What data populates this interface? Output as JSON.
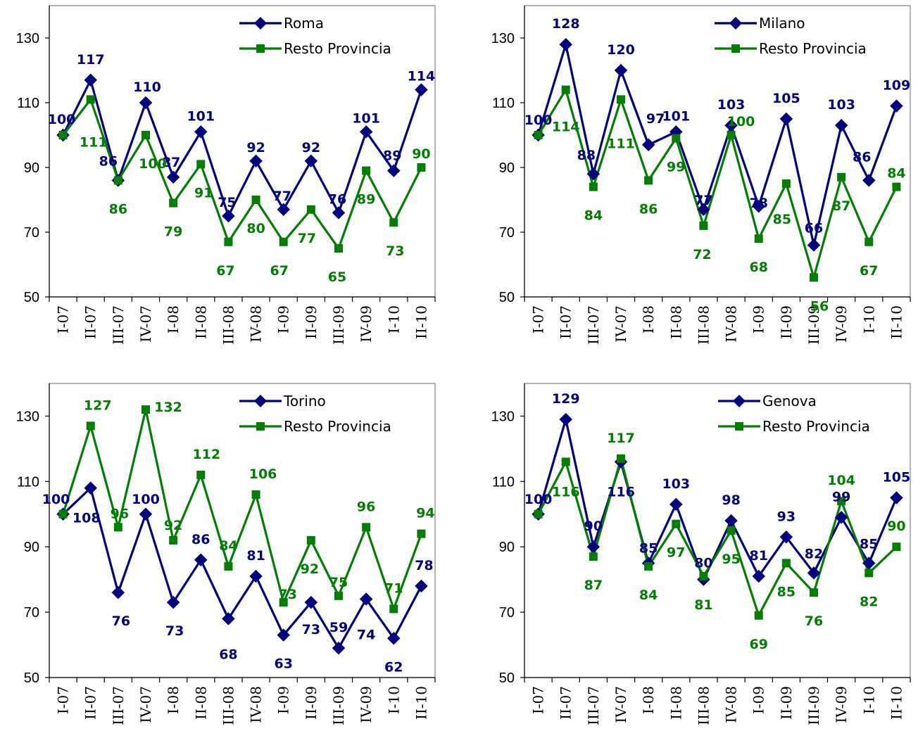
{
  "colors": {
    "city": "#000080",
    "resto": "#008000"
  },
  "chart_data": [
    {
      "type": "line",
      "categories": [
        "I-07",
        "II-07",
        "III-07",
        "IV-07",
        "I-08",
        "II-08",
        "III-08",
        "IV-08",
        "I-09",
        "II-09",
        "III-09",
        "IV-09",
        "I-10",
        "II-10"
      ],
      "ylim": [
        50,
        140
      ],
      "yticks": [
        50,
        70,
        90,
        110,
        130
      ],
      "series": [
        {
          "name": "Roma",
          "values": [
            100,
            117,
            86,
            110,
            87,
            101,
            75,
            92,
            77,
            92,
            76,
            101,
            89,
            114
          ],
          "labels": [
            "100",
            "117",
            "86",
            "110",
            "87",
            "101",
            "75",
            "92",
            "77",
            "92",
            "76",
            "101",
            "89",
            "114"
          ]
        },
        {
          "name": "Resto Provincia",
          "values": [
            100,
            111,
            86,
            100,
            79,
            91,
            67,
            80,
            67,
            77,
            65,
            89,
            73,
            90
          ],
          "labels": [
            "",
            "111",
            "86",
            "100",
            "79",
            "91",
            "67",
            "80",
            "67",
            "77",
            "65",
            "89",
            "73",
            "90"
          ]
        }
      ]
    },
    {
      "type": "line",
      "categories": [
        "I-07",
        "II-07",
        "III-07",
        "IV-07",
        "I-08",
        "II-08",
        "III-08",
        "IV-08",
        "I-09",
        "II-09",
        "III-09",
        "IV-09",
        "I-10",
        "II-10"
      ],
      "ylim": [
        50,
        140
      ],
      "yticks": [
        50,
        70,
        90,
        110,
        130
      ],
      "series": [
        {
          "name": "Milano",
          "values": [
            100,
            128,
            88,
            120,
            97,
            101,
            77,
            103,
            78,
            105,
            66,
            103,
            86,
            109
          ],
          "labels": [
            "100",
            "128",
            "88",
            "120",
            "97",
            "101",
            "77",
            "103",
            "78",
            "105",
            "66",
            "103",
            "86",
            "109"
          ]
        },
        {
          "name": "Resto Provincia",
          "values": [
            100,
            114,
            84,
            111,
            86,
            99,
            72,
            100,
            68,
            85,
            56,
            87,
            67,
            84
          ],
          "labels": [
            "",
            "114",
            "84",
            "111",
            "86",
            "99",
            "72",
            "100",
            "68",
            "85",
            "56",
            "87",
            "67",
            "84"
          ]
        }
      ]
    },
    {
      "type": "line",
      "categories": [
        "I-07",
        "II-07",
        "III-07",
        "IV-07",
        "I-08",
        "II-08",
        "III-08",
        "IV-08",
        "I-09",
        "II-09",
        "III-09",
        "IV-09",
        "I-10",
        "II-10"
      ],
      "ylim": [
        50,
        140
      ],
      "yticks": [
        50,
        70,
        90,
        110,
        130
      ],
      "series": [
        {
          "name": "Torino",
          "values": [
            100,
            108,
            76,
            100,
            73,
            86,
            68,
            81,
            63,
            73,
            59,
            74,
            62,
            78
          ],
          "labels": [
            "100",
            "108",
            "76",
            "100",
            "73",
            "86",
            "68",
            "81",
            "63",
            "73",
            "59",
            "74",
            "62",
            "78"
          ]
        },
        {
          "name": "Resto Provincia",
          "values": [
            100,
            127,
            96,
            132,
            92,
            112,
            84,
            106,
            73,
            92,
            75,
            96,
            71,
            94
          ],
          "labels": [
            "",
            "127",
            "96",
            "132",
            "92",
            "112",
            "84",
            "106",
            "73",
            "92",
            "75",
            "96",
            "71",
            "94"
          ]
        }
      ]
    },
    {
      "type": "line",
      "categories": [
        "I-07",
        "II-07",
        "III-07",
        "IV-07",
        "I-08",
        "II-08",
        "III-08",
        "IV-08",
        "I-09",
        "II-09",
        "III-09",
        "IV-09",
        "I-10",
        "II-10"
      ],
      "ylim": [
        50,
        140
      ],
      "yticks": [
        50,
        70,
        90,
        110,
        130
      ],
      "series": [
        {
          "name": "Genova",
          "values": [
            100,
            129,
            90,
            116,
            85,
            103,
            80,
            98,
            81,
            93,
            82,
            99,
            85,
            105
          ],
          "labels": [
            "100",
            "129",
            "90",
            "116",
            "85",
            "103",
            "80",
            "98",
            "81",
            "93",
            "82",
            "99",
            "85",
            "105"
          ]
        },
        {
          "name": "Resto Provincia",
          "values": [
            100,
            116,
            87,
            117,
            84,
            97,
            81,
            95,
            69,
            85,
            76,
            104,
            82,
            90
          ],
          "labels": [
            "",
            "116",
            "87",
            "117",
            "84",
            "97",
            "81",
            "95",
            "69",
            "85",
            "76",
            "104",
            "82",
            "90"
          ]
        }
      ]
    }
  ]
}
